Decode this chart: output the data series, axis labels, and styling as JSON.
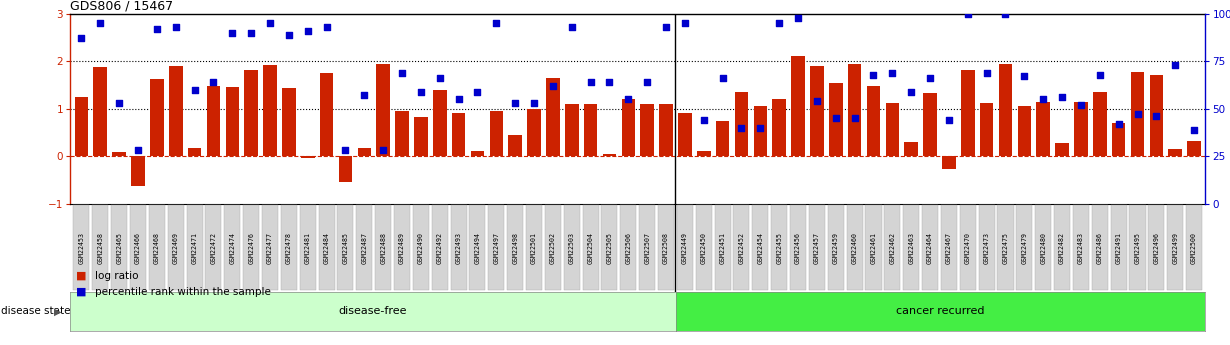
{
  "title": "GDS806 / 15467",
  "samples": [
    "GSM22453",
    "GSM22458",
    "GSM22465",
    "GSM22466",
    "GSM22468",
    "GSM22469",
    "GSM22471",
    "GSM22472",
    "GSM22474",
    "GSM22476",
    "GSM22477",
    "GSM22478",
    "GSM22481",
    "GSM22484",
    "GSM22485",
    "GSM22487",
    "GSM22488",
    "GSM22489",
    "GSM22490",
    "GSM22492",
    "GSM22493",
    "GSM22494",
    "GSM22497",
    "GSM22498",
    "GSM22501",
    "GSM22502",
    "GSM22503",
    "GSM22504",
    "GSM22505",
    "GSM22506",
    "GSM22507",
    "GSM22508",
    "GSM22449",
    "GSM22450",
    "GSM22451",
    "GSM22452",
    "GSM22454",
    "GSM22455",
    "GSM22456",
    "GSM22457",
    "GSM22459",
    "GSM22460",
    "GSM22461",
    "GSM22462",
    "GSM22463",
    "GSM22464",
    "GSM22467",
    "GSM22470",
    "GSM22473",
    "GSM22475",
    "GSM22479",
    "GSM22480",
    "GSM22482",
    "GSM22483",
    "GSM22486",
    "GSM22491",
    "GSM22495",
    "GSM22496",
    "GSM22499",
    "GSM22500"
  ],
  "log_ratio": [
    1.25,
    1.88,
    0.08,
    -0.62,
    1.62,
    1.9,
    0.18,
    1.47,
    1.46,
    1.82,
    1.92,
    1.43,
    -0.05,
    1.75,
    -0.55,
    0.18,
    1.95,
    0.95,
    0.82,
    1.4,
    0.9,
    0.1,
    0.95,
    0.45,
    1.0,
    1.65,
    1.1,
    1.1,
    0.05,
    1.2,
    1.1,
    1.1,
    0.9,
    0.1,
    0.75,
    1.35,
    1.05,
    1.2,
    2.1,
    1.9,
    1.55,
    1.95,
    1.48,
    1.12,
    0.3,
    1.32,
    -0.28,
    1.82,
    1.12,
    1.95,
    1.06,
    1.15,
    0.27,
    1.14,
    1.35,
    0.7,
    1.78,
    1.72,
    0.15,
    0.32
  ],
  "percentile_pct": [
    87,
    95,
    53,
    28,
    92,
    93,
    60,
    64,
    90,
    90,
    95,
    89,
    91,
    93,
    28,
    57,
    28,
    69,
    59,
    66,
    55,
    59,
    95,
    53,
    53,
    62,
    93,
    64,
    64,
    55,
    64,
    93,
    95,
    44,
    66,
    40,
    40,
    95,
    98,
    54,
    45,
    45,
    68,
    69,
    59,
    66,
    44,
    100,
    69,
    100,
    67,
    55,
    56,
    52,
    68,
    42,
    47,
    46,
    73,
    39
  ],
  "disease_free_count": 32,
  "bar_color": "#cc2200",
  "dot_color": "#0000cc",
  "ylim_min": -1.0,
  "ylim_max": 3.0,
  "y2lim_min": 0,
  "y2lim_max": 100,
  "yticks_left": [
    -1,
    0,
    1,
    2,
    3
  ],
  "yticks_right": [
    0,
    25,
    50,
    75,
    100
  ],
  "dotted_lines": [
    1.0,
    2.0
  ],
  "zero_line_color": "#cc2200",
  "disease_free_label": "disease-free",
  "cancer_label": "cancer recurred",
  "disease_state_label": "disease state",
  "legend_log_ratio": "log ratio",
  "legend_percentile": "percentile rank within the sample",
  "light_green": "#ccffcc",
  "dark_green": "#44ee44",
  "gray_tick_bg": "#d4d4d4",
  "separator_color": "#000000"
}
